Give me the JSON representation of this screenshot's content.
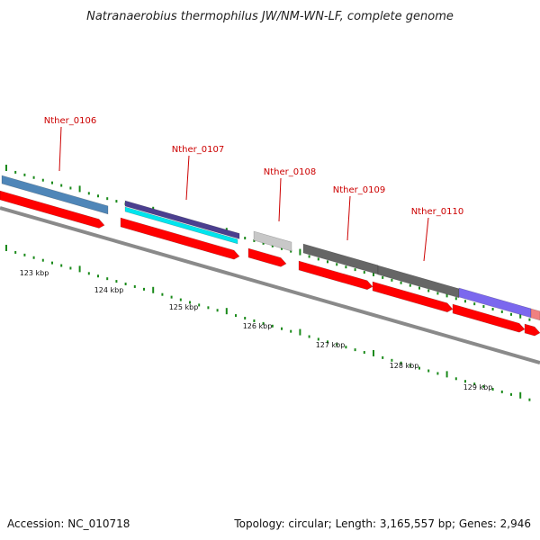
{
  "title": "Natranaerobius thermophilus JW/NM-WN-LF, complete genome",
  "footer": {
    "accession": "Accession: NC_010718",
    "summary": "Topology: circular; Length: 3,165,557 bp; Genes: 2,946"
  },
  "colors": {
    "backbone": "#8a8a8a",
    "cds": "#ff0000",
    "tick": "#1a8a1a",
    "label": "#cc0000"
  },
  "genes": [
    {
      "name": "Nther_0106",
      "color": "#4f86b8"
    },
    {
      "name": "Nther_0107",
      "color": "#4b3f8f",
      "secondary_color": "#00e5ee"
    },
    {
      "name": "Nther_0108",
      "color": "#c8c8c8"
    },
    {
      "name": "Nther_0109",
      "color": "#666666"
    },
    {
      "name": "Nther_0110",
      "color": "#666666"
    }
  ],
  "partial_genes": [
    {
      "color": "#7b68ee"
    },
    {
      "color": "#f08080"
    }
  ],
  "scale_labels": [
    "123 kbp",
    "124 kbp",
    "125 kbp",
    "126 kbp",
    "127 kbp",
    "128 kbp",
    "129 kbp"
  ]
}
